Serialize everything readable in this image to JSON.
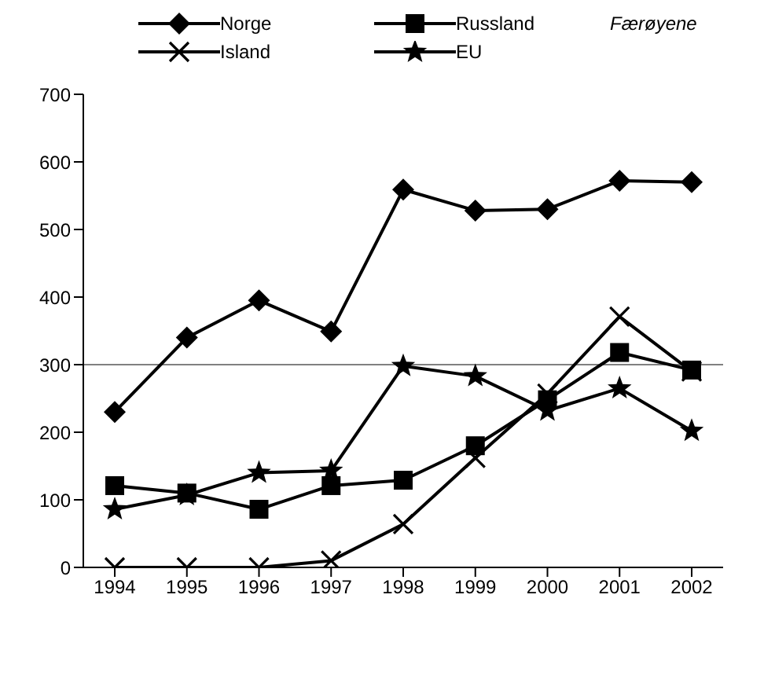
{
  "chart_data": {
    "type": "line",
    "categories": [
      "1994",
      "1995",
      "1996",
      "1997",
      "1998",
      "1999",
      "2000",
      "2001",
      "2002"
    ],
    "series": [
      {
        "name": "Norge",
        "color": "#000000",
        "marker": "diamond",
        "values": [
          230,
          340,
          395,
          349,
          559,
          528,
          530,
          572,
          570
        ]
      },
      {
        "name": "Russland",
        "color": "#000000",
        "marker": "square",
        "values": [
          121,
          110,
          86,
          121,
          129,
          180,
          248,
          318,
          292
        ]
      },
      {
        "name": "Island",
        "color": "#000000",
        "marker": "cross",
        "values": [
          0,
          0,
          0,
          10,
          64,
          162,
          257,
          371,
          290
        ]
      },
      {
        "name": "EU",
        "color": "#000000",
        "marker": "star",
        "values": [
          86,
          107,
          140,
          143,
          298,
          283,
          232,
          265,
          202
        ]
      }
    ],
    "annotations": [
      "Færøyene"
    ],
    "ylim": [
      0,
      700
    ],
    "yticks": [
      0,
      100,
      200,
      300,
      400,
      500,
      600,
      700
    ],
    "ref_lines": [
      {
        "axis": "y",
        "value": 300,
        "color": "#808080"
      }
    ],
    "legend": "top",
    "line_style": "solid"
  }
}
